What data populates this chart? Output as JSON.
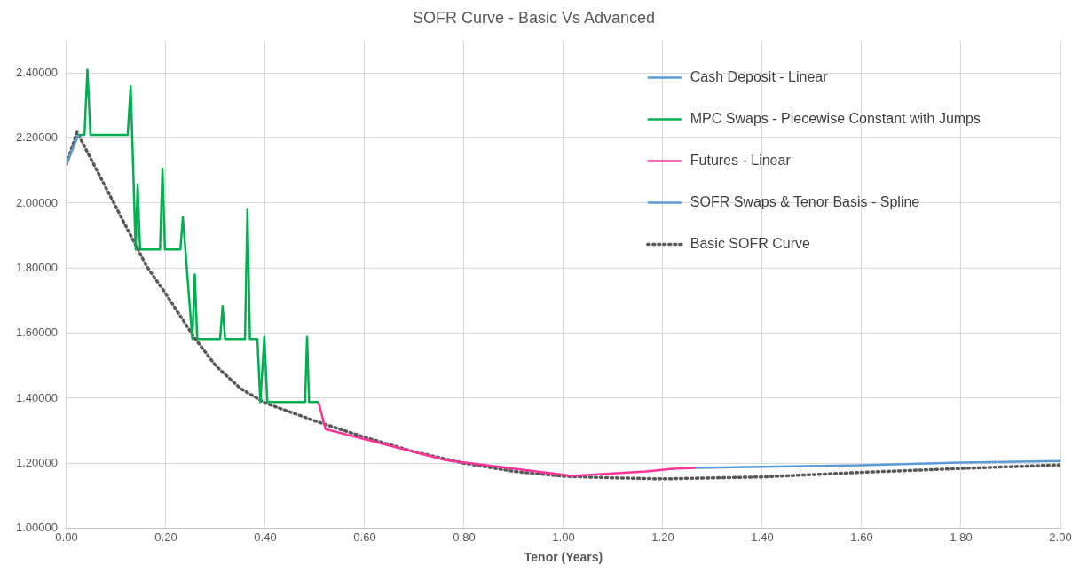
{
  "chart_data": {
    "type": "line",
    "title": "SOFR Curve - Basic Vs Advanced",
    "xlabel": "Tenor (Years)",
    "xlim": [
      0,
      2
    ],
    "xticks": [
      {
        "value": 0,
        "label": "0.00"
      },
      {
        "value": 0.2,
        "label": "0.20"
      },
      {
        "value": 0.4,
        "label": "0.40"
      },
      {
        "value": 0.6,
        "label": "0.60"
      },
      {
        "value": 0.8,
        "label": "0.80"
      },
      {
        "value": 1,
        "label": "1.00"
      },
      {
        "value": 1.2,
        "label": "1.20"
      },
      {
        "value": 1.4,
        "label": "1.40"
      },
      {
        "value": 1.6,
        "label": "1.60"
      },
      {
        "value": 1.8,
        "label": "1.80"
      },
      {
        "value": 2,
        "label": "2.00"
      }
    ],
    "ylim": [
      1,
      2.5
    ],
    "yticks": [
      {
        "value": 1,
        "label": "1.00000"
      },
      {
        "value": 1.2,
        "label": "1.20000"
      },
      {
        "value": 1.4,
        "label": "1.40000"
      },
      {
        "value": 1.6,
        "label": "1.60000"
      },
      {
        "value": 1.8,
        "label": "1.80000"
      },
      {
        "value": 2,
        "label": "2.00000"
      },
      {
        "value": 2.2,
        "label": "2.20000"
      },
      {
        "value": 2.4,
        "label": "2.40000"
      }
    ],
    "grid": true,
    "legend": "top right",
    "marker": "none",
    "series": [
      {
        "name": "Cash Deposit - Linear",
        "color": "#5b9bd5",
        "x": [
          0,
          0.024
        ],
        "values": [
          2.12,
          2.21
        ]
      },
      {
        "name": "MPC Swaps - Piecewise Constant with Jumps",
        "color": "#00b050",
        "x": [
          0.024,
          0.036,
          0.042,
          0.048,
          0.123,
          0.129,
          0.139,
          0.143,
          0.148,
          0.188,
          0.193,
          0.198,
          0.229,
          0.234,
          0.253,
          0.258,
          0.263,
          0.309,
          0.314,
          0.319,
          0.359,
          0.364,
          0.369,
          0.384,
          0.39,
          0.398,
          0.404,
          0.48,
          0.484,
          0.488,
          0.507
        ],
        "values": [
          2.21,
          2.21,
          2.41,
          2.21,
          2.21,
          2.36,
          1.857,
          2.058,
          1.857,
          1.857,
          2.106,
          1.857,
          1.857,
          1.957,
          1.582,
          1.78,
          1.582,
          1.582,
          1.683,
          1.582,
          1.582,
          1.98,
          1.582,
          1.582,
          1.388,
          1.589,
          1.388,
          1.388,
          1.589,
          1.388,
          1.388
        ]
      },
      {
        "name": "Futures - Linear",
        "color": "#ff3399",
        "x": [
          0.507,
          0.521,
          0.765,
          1.017,
          1.166,
          1.22,
          1.266
        ],
        "values": [
          1.388,
          1.305,
          1.209,
          1.161,
          1.175,
          1.183,
          1.186
        ]
      },
      {
        "name": "SOFR Swaps & Tenor Basis - Spline",
        "color": "#5b9bd5",
        "x": [
          1.266,
          1.4,
          1.6,
          1.8,
          2
        ],
        "values": [
          1.186,
          1.189,
          1.194,
          1.202,
          1.207
        ]
      },
      {
        "name": "Basic SOFR Curve",
        "color": "#595959",
        "line_style": "dotted",
        "x": [
          0,
          0.021,
          0.099,
          0.161,
          0.2,
          0.26,
          0.3,
          0.35,
          0.4,
          0.5,
          0.6,
          0.7,
          0.8,
          0.9,
          1,
          1.1,
          1.2,
          1.4,
          1.6,
          1.8,
          2
        ],
        "values": [
          2.12,
          2.218,
          1.989,
          1.806,
          1.72,
          1.58,
          1.5,
          1.43,
          1.385,
          1.33,
          1.28,
          1.235,
          1.2,
          1.175,
          1.16,
          1.155,
          1.152,
          1.158,
          1.172,
          1.184,
          1.195
        ]
      }
    ]
  }
}
